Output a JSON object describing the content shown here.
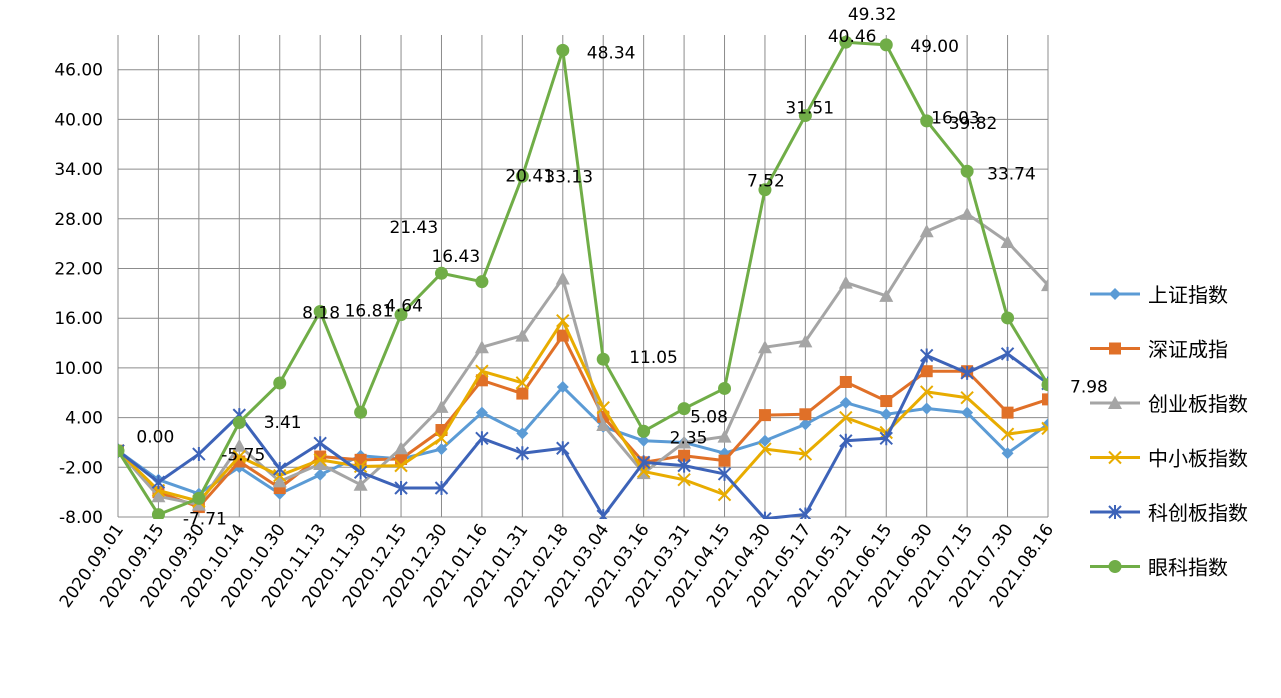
{
  "chart_data": {
    "type": "line",
    "categories": [
      "2020.09.01",
      "2020.09.15",
      "2020.09.30",
      "2020.10.14",
      "2020.10.30",
      "2020.11.13",
      "2020.11.30",
      "2020.12.15",
      "2020.12.30",
      "2021.01.16",
      "2021.01.31",
      "2021.02.18",
      "2021.03.04",
      "2021.03.16",
      "2021.03.31",
      "2021.04.15",
      "2021.04.30",
      "2021.05.17",
      "2021.05.31",
      "2021.06.15",
      "2021.06.30",
      "2021.07.15",
      "2021.07.30",
      "2021.08.16"
    ],
    "ylim": [
      -8,
      52
    ],
    "yticks": [
      "-8.00",
      "-2.00",
      "4.00",
      "10.00",
      "16.00",
      "22.00",
      "28.00",
      "34.00",
      "40.00",
      "46.00"
    ],
    "grid": true,
    "legend_position": "right",
    "series": [
      {
        "name": "上证指数",
        "color": "#5b9bd5",
        "marker": "diamond",
        "values": [
          0.0,
          -3.5,
          -5.2,
          -2.0,
          -5.2,
          -2.9,
          -0.6,
          -1.0,
          0.2,
          4.6,
          2.1,
          7.7,
          2.9,
          1.2,
          1.0,
          -0.3,
          1.2,
          3.2,
          5.8,
          4.4,
          5.1,
          4.6,
          -0.3,
          3.2
        ]
      },
      {
        "name": "深证成指",
        "color": "#e07028",
        "marker": "square",
        "values": [
          0.0,
          -5.0,
          -6.8,
          -1.3,
          -4.5,
          -0.7,
          -1.1,
          -1.0,
          2.5,
          8.5,
          6.9,
          13.9,
          4.1,
          -1.4,
          -0.6,
          -1.2,
          4.3,
          4.4,
          8.3,
          6.0,
          9.6,
          9.6,
          4.6,
          6.2
        ]
      },
      {
        "name": "创业板指数",
        "color": "#a5a5a5",
        "marker": "triangle",
        "values": [
          0.0,
          -5.5,
          -6.5,
          0.6,
          -3.7,
          -1.6,
          -4.1,
          0.3,
          5.3,
          12.5,
          13.9,
          20.8,
          3.1,
          -2.7,
          1.0,
          1.7,
          12.5,
          13.2,
          20.3,
          18.7,
          26.5,
          28.6,
          25.2,
          20.0
        ]
      },
      {
        "name": "中小板指数",
        "color": "#e8ac00",
        "marker": "x",
        "values": [
          0.0,
          -4.8,
          -6.1,
          -0.7,
          -3.0,
          -1.1,
          -1.9,
          -1.8,
          1.5,
          9.6,
          8.2,
          15.7,
          5.2,
          -2.5,
          -3.5,
          -5.3,
          0.2,
          -0.4,
          4.0,
          2.2,
          7.1,
          6.4,
          2.0,
          2.7
        ]
      },
      {
        "name": "科创板指数",
        "color": "#3d63b8",
        "marker": "star",
        "values": [
          0.0,
          -3.8,
          -0.4,
          4.3,
          -2.2,
          0.9,
          -2.6,
          -4.5,
          -4.5,
          1.5,
          -0.3,
          0.3,
          -7.9,
          -1.4,
          -1.8,
          -2.8,
          -8.2,
          -7.7,
          1.2,
          1.5,
          11.5,
          9.4,
          11.7,
          8.1
        ]
      },
      {
        "name": "眼科指数",
        "color": "#70ad47",
        "marker": "circle",
        "values": [
          0.0,
          -7.71,
          -5.75,
          3.41,
          8.18,
          16.81,
          4.64,
          16.43,
          21.43,
          20.41,
          33.13,
          48.34,
          11.05,
          2.35,
          5.08,
          7.52,
          31.51,
          40.46,
          49.32,
          49.0,
          39.82,
          33.74,
          16.03,
          7.98
        ]
      }
    ],
    "data_labels": [
      {
        "text": "0.00",
        "index": 1,
        "dx": -22,
        "dy": -72,
        "color": "#000000"
      },
      {
        "text": "-7.71",
        "index": 2,
        "dx": -16,
        "dy": 26,
        "color": "#ff0000"
      },
      {
        "text": "-5.75",
        "index": 3,
        "dx": -18,
        "dy": 38,
        "color": "#ff0000"
      },
      {
        "text": "3.41",
        "index": 4,
        "dx": -16,
        "dy": 45,
        "color": "#000000"
      },
      {
        "text": "8.18",
        "index": 5,
        "dx": -18,
        "dy": 7,
        "color": "#000000"
      },
      {
        "text": "16.81",
        "index": 6,
        "dx": -16,
        "dy": -96,
        "color": "#000000"
      },
      {
        "text": "4.64",
        "index": 7,
        "dx": -16,
        "dy": -3,
        "color": "#000000"
      },
      {
        "text": "16.43",
        "index": 8,
        "dx": -10,
        "dy": -11,
        "color": "#000000"
      },
      {
        "text": "21.43",
        "index": 8,
        "dx": -52,
        "dy": -40,
        "color": "#000000"
      },
      {
        "text": "20.41",
        "index": 10,
        "dx": -17,
        "dy": 5,
        "color": "#000000"
      },
      {
        "text": "33.13",
        "index": 10,
        "dx": 22,
        "dy": 6,
        "color": "#000000"
      },
      {
        "text": "48.34",
        "index": 11,
        "dx": 24,
        "dy": 8,
        "color": "#000000"
      },
      {
        "text": "11.05",
        "index": 12,
        "dx": 26,
        "dy": 4,
        "color": "#000000"
      },
      {
        "text": "2.35",
        "index": 13,
        "dx": 26,
        "dy": 12,
        "color": "#000000"
      },
      {
        "text": "5.08",
        "index": 14,
        "dx": 6,
        "dy": 14,
        "color": "#000000"
      },
      {
        "text": "7.52",
        "index": 16,
        "dx": -18,
        "dy": -3,
        "color": "#000000"
      },
      {
        "text": "31.51",
        "index": 17,
        "dx": -20,
        "dy": -2,
        "color": "#000000"
      },
      {
        "text": "40.46",
        "index": 18,
        "dx": -18,
        "dy": 0,
        "color": "#000000"
      },
      {
        "text": "49.32",
        "index": 18,
        "dx": 2,
        "dy": -22,
        "color": "#000000"
      },
      {
        "text": "49.00",
        "index": 19,
        "dx": 24,
        "dy": 7,
        "color": "#000000"
      },
      {
        "text": "39.82",
        "index": 20,
        "dx": 22,
        "dy": 8,
        "color": "#000000"
      },
      {
        "text": "33.74",
        "index": 21,
        "dx": 20,
        "dy": 8,
        "color": "#000000"
      },
      {
        "text": "16.03",
        "index": 21,
        "dx": -36,
        "dy": -48,
        "color": "#000000"
      },
      {
        "text": "7.98",
        "index": 23,
        "dx": 22,
        "dy": 8,
        "color": "#000000"
      }
    ]
  }
}
